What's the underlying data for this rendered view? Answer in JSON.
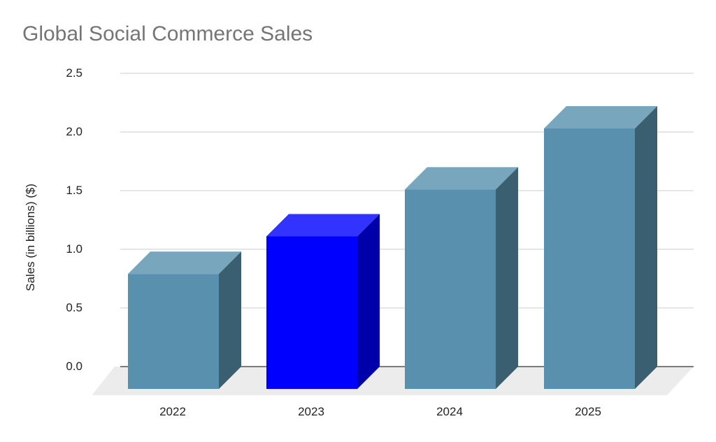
{
  "chart_data": {
    "type": "bar",
    "title": "Global Social Commerce Sales",
    "xlabel": "",
    "ylabel": "Sales (in billions) ($)",
    "categories": [
      "2022",
      "2023",
      "2024",
      "2025"
    ],
    "values": [
      0.79,
      1.11,
      1.51,
      2.03
    ],
    "ylim": [
      0,
      2.5
    ],
    "yticks": [
      "0.0",
      "0.5",
      "1.0",
      "1.5",
      "2.0",
      "2.5"
    ],
    "grid": true,
    "legend": "none",
    "style": "3d",
    "highlight": {
      "category": "2023",
      "color": "#0000ff"
    },
    "colors": {
      "default_front": "#5990ad",
      "default_top": "#78a6bd",
      "default_side": "#3a5f70",
      "highlight_front": "#0000ff",
      "highlight_top": "#3333ff",
      "highlight_side": "#0000aa",
      "floor": "#ececec",
      "gridline": "#cccccc",
      "baseline": "#333333"
    }
  }
}
